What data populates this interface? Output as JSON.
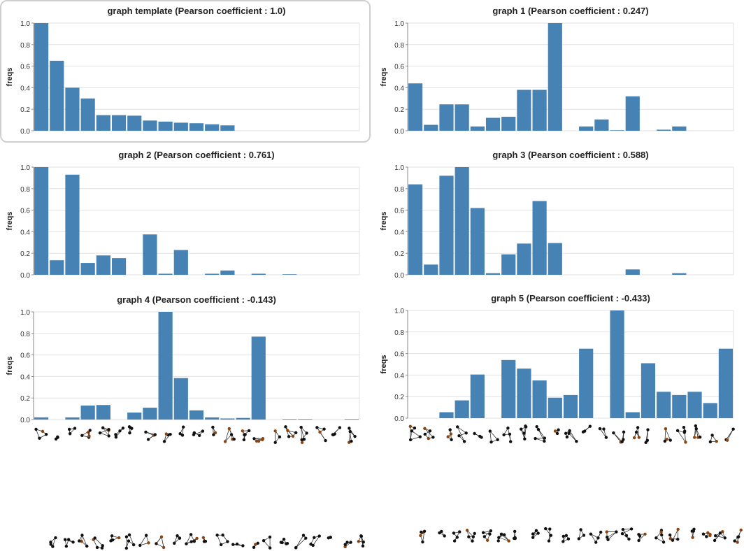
{
  "bar_color": "#4682b4",
  "highlight_border_color": "#cfcfcf",
  "chart_data": [
    {
      "type": "bar",
      "title": "graph template (Pearson coefficient : 1.0)",
      "ylabel": "freqs",
      "ylim": [
        0,
        1.0
      ],
      "yticks": [
        "0.0",
        "0.2",
        "0.4",
        "0.6",
        "0.8",
        "1.0"
      ],
      "grid": true,
      "highlighted": true,
      "values": [
        1.0,
        0.65,
        0.4,
        0.3,
        0.145,
        0.145,
        0.14,
        0.095,
        0.085,
        0.075,
        0.07,
        0.06,
        0.05,
        0,
        0,
        0,
        0,
        0,
        0,
        0,
        0
      ]
    },
    {
      "type": "bar",
      "title": "graph 1 (Pearson coefficient : 0.247)",
      "ylabel": "freqs",
      "ylim": [
        0,
        1.0
      ],
      "yticks": [
        "0.0",
        "0.2",
        "0.4",
        "0.6",
        "0.8",
        "1.0"
      ],
      "grid": true,
      "values": [
        0.44,
        0.055,
        0.245,
        0.245,
        0.04,
        0.12,
        0.13,
        0.38,
        0.38,
        1.0,
        0,
        0.04,
        0.105,
        0.005,
        0.32,
        0,
        0.01,
        0.04,
        0,
        0,
        0
      ]
    },
    {
      "type": "bar",
      "title": "graph 2 (Pearson coefficient : 0.761)",
      "ylabel": "freqs",
      "ylim": [
        0,
        1.0
      ],
      "yticks": [
        "0.0",
        "0.2",
        "0.4",
        "0.6",
        "0.8",
        "1.0"
      ],
      "grid": true,
      "values": [
        1.0,
        0.135,
        0.93,
        0.11,
        0.18,
        0.155,
        0,
        0.375,
        0.01,
        0.23,
        0,
        0.01,
        0.04,
        0,
        0.01,
        0,
        0.005,
        0,
        0,
        0,
        0
      ]
    },
    {
      "type": "bar",
      "title": "graph 3 (Pearson coefficient : 0.588)",
      "ylabel": "freqs",
      "ylim": [
        0,
        1.0
      ],
      "yticks": [
        "0.0",
        "0.2",
        "0.4",
        "0.6",
        "0.8",
        "1.0"
      ],
      "grid": true,
      "values": [
        0.84,
        0.095,
        0.92,
        1.0,
        0.62,
        0.015,
        0.19,
        0.29,
        0.685,
        0.295,
        0,
        0,
        0,
        0,
        0.05,
        0,
        0,
        0.015,
        0,
        0,
        0
      ]
    },
    {
      "type": "bar",
      "title": "graph 4 (Pearson coefficient : -0.143)",
      "ylabel": "freqs",
      "ylim": [
        0,
        1.0
      ],
      "yticks": [
        "0.0",
        "0.2",
        "0.4",
        "0.6",
        "0.8",
        "1.0"
      ],
      "grid": true,
      "values": [
        0.02,
        0,
        0.02,
        0.13,
        0.135,
        0,
        0.065,
        0.11,
        1.0,
        0.385,
        0.085,
        0.02,
        0.01,
        0.015,
        0.77,
        0,
        0.005,
        0.005,
        0,
        0,
        0.005
      ]
    },
    {
      "type": "bar",
      "title": "graph 5 (Pearson coefficient : -0.433)",
      "ylabel": "freqs",
      "ylim": [
        0,
        1.0
      ],
      "yticks": [
        "0.0",
        "0.2",
        "0.4",
        "0.6",
        "0.8",
        "1.0"
      ],
      "grid": true,
      "values": [
        0,
        0,
        0.055,
        0.165,
        0.405,
        0,
        0.54,
        0.46,
        0.35,
        0.19,
        0.215,
        0.645,
        0,
        1.0,
        0.055,
        0.51,
        0.245,
        0.215,
        0.245,
        0.14,
        0.645
      ]
    }
  ]
}
